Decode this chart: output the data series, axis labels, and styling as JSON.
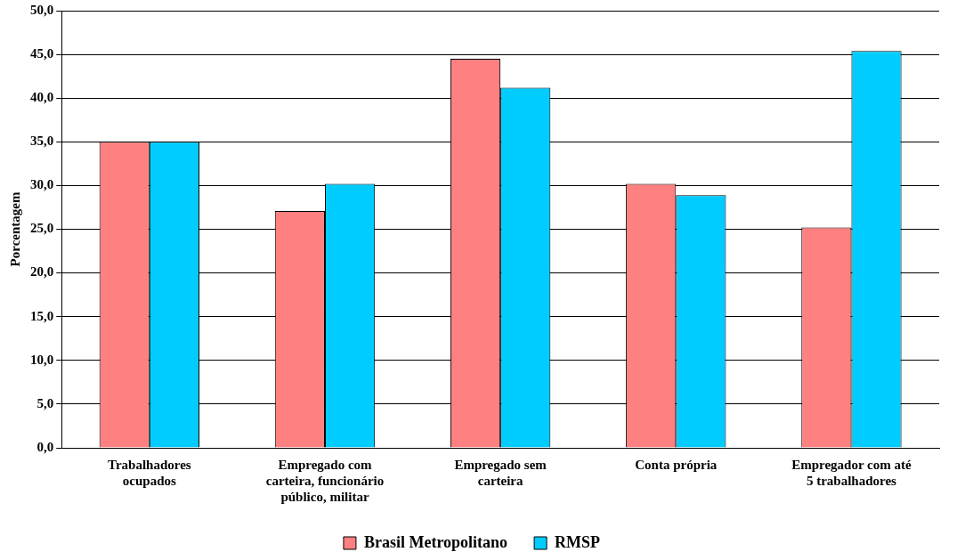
{
  "chart_data": {
    "type": "bar",
    "ylabel": "Porcentagem",
    "categories": [
      "Trabalhadores\nocupados",
      "Empregado com\ncarteira, funcionário\npúblico, militar",
      "Empregado sem\ncarteira",
      "Conta própria",
      "Empregador com até\n5 trabalhadores"
    ],
    "series": [
      {
        "name": "Brasil Metropolitano",
        "color": "#ff8080",
        "values": [
          35.0,
          27.1,
          44.5,
          30.2,
          25.2
        ]
      },
      {
        "name": "RMSP",
        "color": "#00ccff",
        "values": [
          35.0,
          30.2,
          41.2,
          28.9,
          45.4
        ]
      }
    ],
    "ylim": [
      0,
      50
    ],
    "yticks": [
      {
        "value": 0,
        "label": "0,0"
      },
      {
        "value": 5,
        "label": "5,0"
      },
      {
        "value": 10,
        "label": "10,0"
      },
      {
        "value": 15,
        "label": "15,0"
      },
      {
        "value": 20,
        "label": "20,0"
      },
      {
        "value": 25,
        "label": "25,0"
      },
      {
        "value": 30,
        "label": "30,0"
      },
      {
        "value": 35,
        "label": "35,0"
      },
      {
        "value": 40,
        "label": "40,0"
      },
      {
        "value": 45,
        "label": "45,0"
      },
      {
        "value": 50,
        "label": "50,0"
      }
    ],
    "grid": "y",
    "legend": "bottom"
  }
}
